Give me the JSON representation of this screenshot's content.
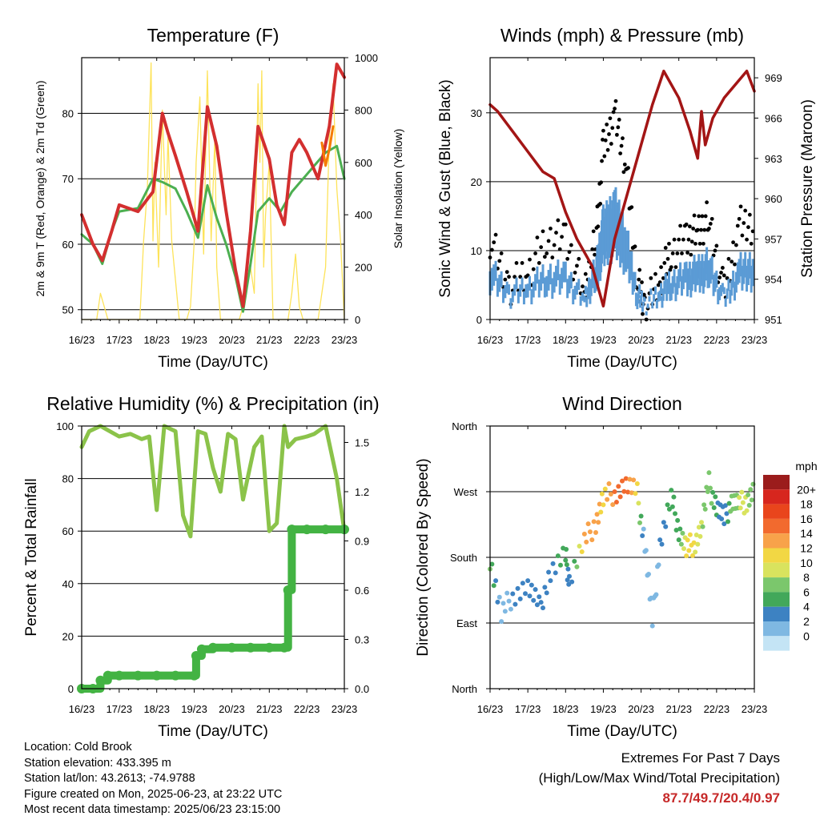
{
  "colors": {
    "red": "#d32f2f",
    "orange": "#f57c00",
    "green": "#4caf50",
    "yellow": "#fde35a",
    "black": "#000000",
    "blue": "#5b9bd5",
    "maroon": "#a31515",
    "lightgreen": "#8bc34a",
    "raingreen": "#43b343",
    "extremes": "#c62828"
  },
  "days": [
    "16/23",
    "17/23",
    "18/23",
    "19/23",
    "20/23",
    "21/23",
    "22/23",
    "23/23"
  ],
  "chart_data": [
    {
      "id": "temp",
      "type": "line",
      "title": "Temperature (F)",
      "xlabel": "Time (Day/UTC)",
      "ylabel": "2m & 9m T (Red, Orange) & 2m Td (Green)",
      "ylabel_right": "Solar Insolation (Yellow)",
      "ylim": [
        48.5,
        88.5
      ],
      "ylim_right": [
        0,
        1000
      ],
      "yticks": [
        50,
        60,
        70,
        80
      ],
      "yticks_right": [
        0,
        200,
        400,
        600,
        800,
        1000
      ],
      "series": [
        {
          "name": "2m T",
          "color": "red",
          "x": [
            0,
            0.3,
            0.55,
            0.8,
            1.0,
            1.5,
            1.9,
            2.15,
            2.3,
            2.5,
            2.8,
            3.1,
            3.35,
            3.6,
            3.85,
            4.1,
            4.3,
            4.5,
            4.7,
            5.0,
            5.2,
            5.4,
            5.6,
            5.8,
            6.0,
            6.3,
            6.6,
            6.8,
            7.0
          ],
          "y": [
            64.5,
            60,
            57.5,
            62,
            66,
            65,
            68,
            80,
            77,
            73.5,
            68,
            62,
            81,
            75,
            65,
            56,
            50.5,
            62,
            78,
            73,
            66,
            63,
            74,
            76,
            74,
            70,
            78,
            87.5,
            85.5
          ]
        },
        {
          "name": "9m T",
          "color": "orange",
          "x": [
            6.4,
            6.5,
            6.6,
            6.7
          ],
          "y": [
            75.5,
            72,
            74.5,
            78
          ]
        },
        {
          "name": "2m Td",
          "color": "green",
          "x": [
            0,
            0.3,
            0.55,
            0.8,
            1.0,
            1.5,
            1.9,
            2.15,
            2.5,
            2.8,
            3.1,
            3.35,
            3.6,
            3.85,
            4.1,
            4.3,
            4.5,
            4.7,
            5.0,
            5.3,
            5.6,
            5.9,
            6.2,
            6.5,
            6.8,
            7.0
          ],
          "y": [
            61.5,
            60,
            57,
            62,
            65,
            65.5,
            70,
            69.5,
            68.5,
            65,
            61,
            69,
            64,
            60,
            55,
            49.7,
            57,
            65,
            67,
            65,
            68,
            70,
            72,
            74,
            75,
            70
          ]
        },
        {
          "name": "Solar Insolation",
          "color": "yellow",
          "axis": "right",
          "x": [
            0,
            0.2,
            0.4,
            0.5,
            0.6,
            0.7,
            0.8,
            0.9,
            1.0,
            1.1,
            1.2,
            1.3,
            1.4,
            1.5,
            1.55,
            1.65,
            1.75,
            1.85,
            1.9,
            1.95,
            2.05,
            2.15,
            2.25,
            2.3,
            2.4,
            2.5,
            2.6,
            2.7,
            2.8,
            2.9,
            3.0,
            3.05,
            3.15,
            3.25,
            3.35,
            3.45,
            3.55,
            3.6,
            3.7,
            3.8,
            3.9,
            4.0,
            4.1,
            4.2,
            4.3,
            4.5,
            4.6,
            4.65,
            4.7,
            4.75,
            4.8,
            4.85,
            4.9,
            5.0,
            5.1,
            5.3,
            5.5,
            5.6,
            5.7,
            5.8,
            5.9,
            6.0,
            6.3,
            6.5,
            6.6,
            6.7,
            6.8,
            6.9,
            7.0
          ],
          "y": [
            0,
            0,
            0,
            100,
            50,
            0,
            0,
            0,
            0,
            0,
            0,
            0,
            0,
            0,
            0,
            300,
            500,
            980,
            300,
            600,
            200,
            800,
            400,
            700,
            300,
            150,
            0,
            0,
            0,
            50,
            300,
            600,
            850,
            250,
            950,
            300,
            700,
            200,
            0,
            0,
            0,
            0,
            0,
            0,
            50,
            200,
            100,
            500,
            900,
            600,
            950,
            200,
            400,
            600,
            0,
            0,
            0,
            100,
            250,
            50,
            0,
            0,
            0,
            200,
            700,
            900,
            500,
            300,
            0
          ]
        }
      ]
    },
    {
      "id": "wind",
      "type": "scatter",
      "title": "Winds (mph) & Pressure (mb)",
      "xlabel": "Time (Day/UTC)",
      "ylabel": "Sonic Wind & Gust (Blue, Black)",
      "ylabel_right": "Station Pressure (Maroon)",
      "ylim": [
        0,
        38
      ],
      "ylim_right": [
        951,
        970.5
      ],
      "yticks": [
        0,
        10,
        20,
        30
      ],
      "yticks_right": [
        951,
        954,
        957,
        960,
        963,
        966,
        969
      ],
      "series": [
        {
          "name": "Wind",
          "color": "blue",
          "x": [
            0,
            0.5,
            1.0,
            1.5,
            2.0,
            2.5,
            2.8,
            3.0,
            3.3,
            3.6,
            3.9,
            4.1,
            4.5,
            4.8,
            5.2,
            5.5,
            5.8,
            6.2,
            6.6,
            7.0
          ],
          "y": [
            7,
            3,
            4,
            6,
            6,
            2,
            7,
            14,
            17,
            12,
            3,
            1,
            3,
            5,
            6,
            7,
            8,
            2,
            7,
            8
          ]
        },
        {
          "name": "Gust",
          "color": "black",
          "x": [
            0,
            0.5,
            1.0,
            1.5,
            2.0,
            2.5,
            2.8,
            3.0,
            3.3,
            3.6,
            3.9,
            4.1,
            4.5,
            4.8,
            5.2,
            5.5,
            5.8,
            6.2,
            6.6,
            7.0
          ],
          "y": [
            12,
            5,
            7,
            12,
            12,
            4,
            12,
            25,
            30,
            23,
            6,
            2,
            6,
            10,
            12,
            13,
            15,
            4,
            14,
            14
          ]
        },
        {
          "name": "Station Pressure",
          "color": "maroon",
          "axis": "right",
          "x": [
            0,
            0.2,
            0.6,
            1.0,
            1.4,
            1.7,
            2.0,
            2.3,
            2.7,
            3.0,
            3.3,
            3.6,
            4.0,
            4.3,
            4.6,
            5.0,
            5.3,
            5.5,
            5.6,
            5.7,
            5.9,
            6.2,
            6.5,
            6.8,
            7.0
          ],
          "y": [
            967,
            966.5,
            965,
            963.5,
            962,
            961.5,
            959,
            957,
            955,
            952,
            957,
            960,
            964,
            967,
            969.5,
            967.5,
            965,
            963,
            966.5,
            964,
            966,
            967.5,
            968.5,
            969.5,
            968
          ]
        }
      ]
    },
    {
      "id": "rh",
      "type": "line",
      "title": "Relative Humidity (%) & Precipitation (in)",
      "xlabel": "Time (Day/UTC)",
      "ylabel": "Percent & Total Rainfall",
      "ylim": [
        0,
        100
      ],
      "ylim_right": [
        0,
        1.6
      ],
      "yticks": [
        0,
        20,
        40,
        60,
        80,
        100
      ],
      "yticks_right": [
        "0.0",
        "0.3",
        "0.6",
        "0.9",
        "1.2",
        "1.5"
      ],
      "series": [
        {
          "name": "Relative Humidity",
          "color": "lightgreen",
          "x": [
            0,
            0.2,
            0.5,
            1.0,
            1.3,
            1.6,
            1.8,
            2.0,
            2.2,
            2.5,
            2.7,
            2.9,
            3.1,
            3.3,
            3.5,
            3.7,
            3.9,
            4.1,
            4.3,
            4.6,
            4.8,
            5.0,
            5.2,
            5.4,
            5.5,
            5.7,
            6.0,
            6.2,
            6.5,
            6.8,
            7.0
          ],
          "y": [
            92,
            98,
            100,
            96,
            97,
            95,
            96,
            68,
            100,
            98,
            66,
            58,
            98,
            97,
            84,
            75,
            97,
            95,
            72,
            92,
            96,
            60,
            63,
            100,
            92,
            95,
            96,
            97,
            100,
            80,
            60
          ]
        },
        {
          "name": "Total Rainfall",
          "color": "raingreen",
          "axis": "right",
          "x": [
            0,
            0.3,
            0.5,
            0.7,
            1.0,
            1.5,
            2.0,
            2.5,
            3.0,
            3.05,
            3.2,
            3.5,
            4.0,
            4.5,
            5.0,
            5.4,
            5.5,
            5.6,
            6.0,
            6.5,
            7.0
          ],
          "y": [
            0,
            0,
            0.05,
            0.08,
            0.08,
            0.08,
            0.08,
            0.08,
            0.08,
            0.2,
            0.24,
            0.25,
            0.25,
            0.25,
            0.25,
            0.25,
            0.6,
            0.97,
            0.97,
            0.97,
            0.97
          ]
        }
      ]
    },
    {
      "id": "dir",
      "type": "scatter",
      "title": "Wind Direction",
      "xlabel": "Time (Day/UTC)",
      "ylabel": "Direction (Colored By Speed)",
      "ylim": [
        0,
        360
      ],
      "ytick_labels": [
        "North",
        "East",
        "South",
        "West",
        "North"
      ],
      "yticks": [
        0,
        90,
        180,
        270,
        360
      ],
      "legend": {
        "title": "mph",
        "labels": [
          "20+",
          "18",
          "16",
          "14",
          "12",
          "10",
          "8",
          "6",
          "4",
          "2",
          "0"
        ],
        "colors": [
          "#9b1c1c",
          "#d7261e",
          "#e9451c",
          "#f26a2e",
          "#f8a24a",
          "#f2d744",
          "#d9e35e",
          "#7bc76c",
          "#42a85a",
          "#3d82c2",
          "#7fb8e2",
          "#c4e4f5"
        ]
      },
      "series": [
        {
          "name": "Direction",
          "x": [
            0,
            0.3,
            0.6,
            1.0,
            1.3,
            1.6,
            2.0,
            2.1,
            2.5,
            2.8,
            3.0,
            3.3,
            3.6,
            3.9,
            4.1,
            4.3,
            4.5,
            4.8,
            5.0,
            5.2,
            5.4,
            5.6,
            5.8,
            6.0,
            6.2,
            6.4,
            6.6,
            6.8,
            7.0
          ],
          "y": [
            180,
            100,
            130,
            140,
            110,
            160,
            180,
            150,
            200,
            230,
            260,
            270,
            280,
            265,
            200,
            90,
            200,
            260,
            220,
            190,
            200,
            220,
            280,
            250,
            230,
            260,
            250,
            260,
            270
          ],
          "v": [
            7,
            2,
            3,
            3,
            4,
            4,
            6,
            3,
            13,
            14,
            12,
            15,
            16,
            12,
            1,
            1,
            3,
            6,
            5,
            12,
            11,
            9,
            8,
            5,
            3,
            8,
            9,
            9,
            8
          ]
        }
      ]
    }
  ],
  "info": {
    "location": "Location: Cold Brook",
    "elevation": "Station elevation: 433.395 m",
    "latlon": "Station lat/lon: 43.2613; -74.9788",
    "created": "Figure created on Mon, 2025-06-23, at 23:22 UTC",
    "timestamp": "Most recent data timestamp: 2025/06/23 23:15:00"
  },
  "extremes": {
    "title": "Extremes For Past 7 Days",
    "subtitle": "(High/Low/Max Wind/Total Precipitation)",
    "values": "87.7/49.7/20.4/0.97"
  }
}
